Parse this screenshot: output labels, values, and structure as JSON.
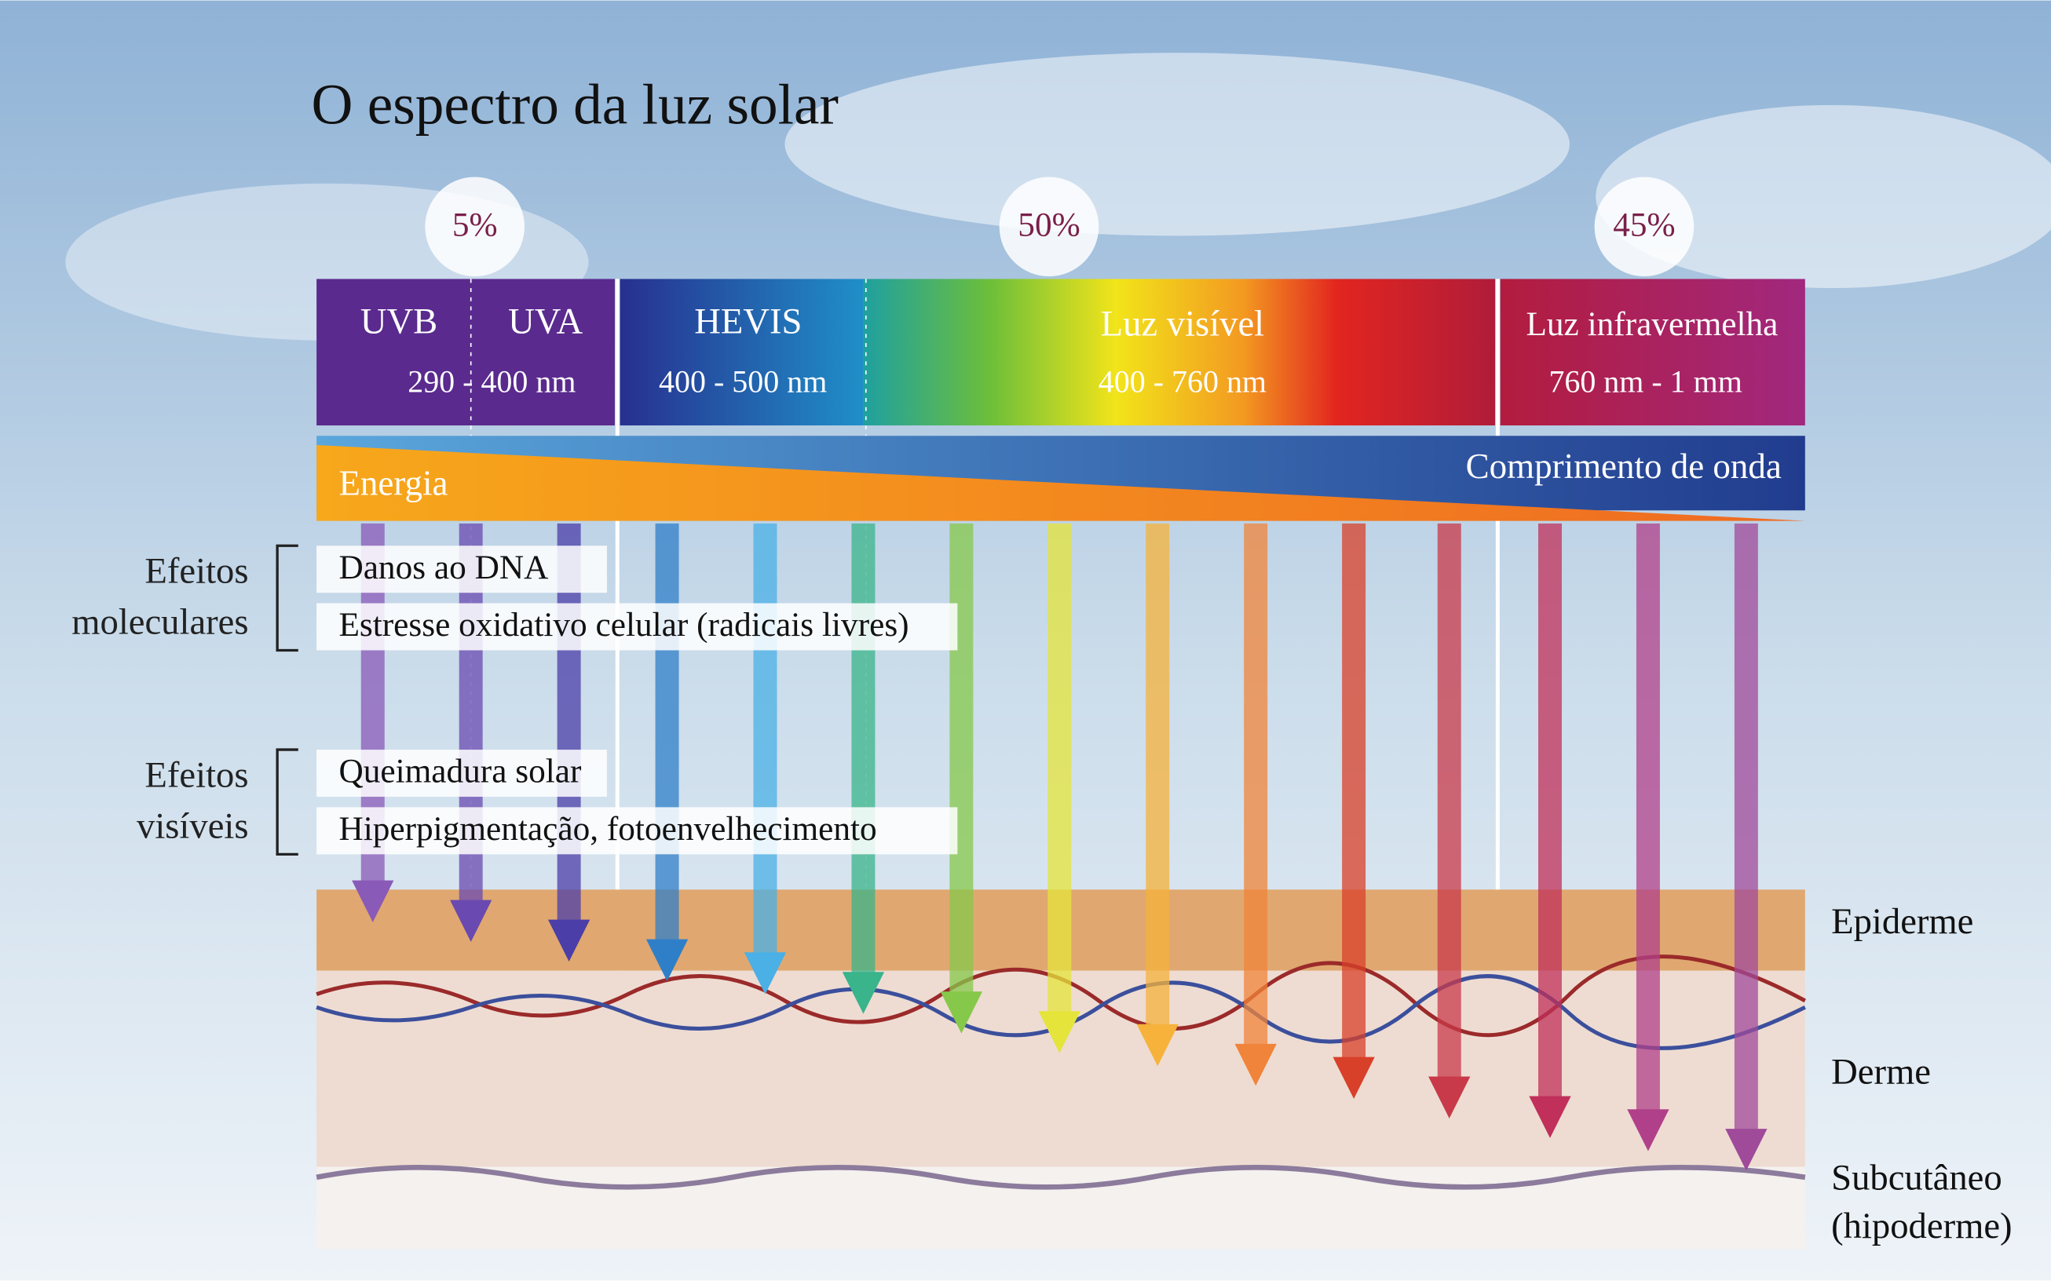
{
  "title": "O espectro da luz solar",
  "shares": [
    "5%",
    "50%",
    "45%"
  ],
  "spectrum": {
    "uvb": "UVB",
    "uva": "UVA",
    "uv_range": "290 - 400 nm",
    "hevis": "HEVIS",
    "hevis_range": "400 - 500 nm",
    "visible": "Luz visível",
    "visible_range": "400 - 760 nm",
    "infrared": "Luz infravermelha",
    "infrared_range": "760 nm - 1 mm"
  },
  "energy": "Energia",
  "wavelength": "Comprimento de onda",
  "effect_groups": [
    {
      "label_lines": [
        "Efeitos",
        "moleculares"
      ],
      "items": [
        "Danos ao DNA",
        "Estresse oxidativo celular (radicais livres)"
      ]
    },
    {
      "label_lines": [
        "Efeitos",
        "visíveis"
      ],
      "items": [
        "Queimadura solar",
        "Hiperpigmentação, fotoenvelhecimento"
      ]
    }
  ],
  "skin_layers": [
    [
      "Epiderme"
    ],
    [
      "Derme"
    ],
    [
      "Subcutâneo",
      "(hipoderme)"
    ]
  ]
}
